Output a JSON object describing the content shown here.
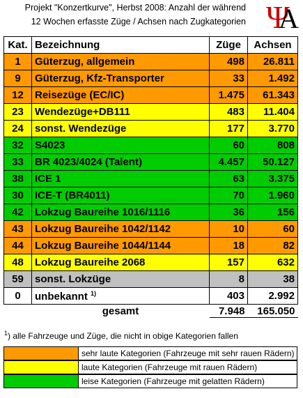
{
  "header": {
    "title_line1": "Projekt \"Konzertkurve\", Herbst 2008: Anzahl der während",
    "title_line2": "12 Wochen erfasste Züge / Achsen nach Zugkategorien",
    "logo_symbol": "Ψ",
    "logo_letter": "A"
  },
  "table": {
    "columns": [
      "Kat.",
      "Bezeichnung",
      "Züge",
      "Achsen"
    ],
    "rows": [
      {
        "cells": [
          "1",
          "Güterzug, allgemein",
          "498",
          "26.811"
        ],
        "color": "#ff9900"
      },
      {
        "cells": [
          "9",
          "Güterzug, Kfz-Transporter",
          "33",
          "1.492"
        ],
        "color": "#ff9900"
      },
      {
        "cells": [
          "12",
          "Reisezüge (EC/IC)",
          "1.475",
          "61.343"
        ],
        "color": "#ff9900"
      },
      {
        "cells": [
          "23",
          "Wendezüge+DB111",
          "483",
          "11.404"
        ],
        "color": "#ffff00"
      },
      {
        "cells": [
          "24",
          "sonst. Wendezüge",
          "177",
          "3.770"
        ],
        "color": "#ffff00"
      },
      {
        "cells": [
          "32",
          "S4023",
          "60",
          "808"
        ],
        "color": "#00cc00"
      },
      {
        "cells": [
          "33",
          "BR 4023/4024 (Talent)",
          "4.457",
          "50.127"
        ],
        "color": "#00cc00"
      },
      {
        "cells": [
          "38",
          "ICE 1",
          "63",
          "3.375"
        ],
        "color": "#00cc00"
      },
      {
        "cells": [
          "30",
          "ICE-T (BR4011)",
          "70",
          "1.960"
        ],
        "color": "#00cc00"
      },
      {
        "cells": [
          "42",
          "Lokzug Baureihe 1016/1116",
          "36",
          "156"
        ],
        "color": "#00cc00"
      },
      {
        "cells": [
          "43",
          "Lokzug Baureihe 1042/1142",
          "10",
          "60"
        ],
        "color": "#ff9900"
      },
      {
        "cells": [
          "44",
          "Lokzug Baureihe 1044/1144",
          "18",
          "82"
        ],
        "color": "#ff9900"
      },
      {
        "cells": [
          "48",
          "Lokzug Baureihe 2068",
          "157",
          "632"
        ],
        "color": "#ffff00"
      },
      {
        "cells": [
          "59",
          "sonst. Lokzüge",
          "8",
          "38"
        ],
        "color": "#c0c0c0"
      },
      {
        "cells": [
          "0",
          "unbekannt",
          "403",
          "2.992"
        ],
        "color": "#ffffff",
        "note": "1)"
      }
    ],
    "total": [
      "gesamt",
      "7.948",
      "165.050"
    ]
  },
  "footnote": {
    "mark": "1",
    "text": ") alle Fahrzeuge und Züge, die nicht in obige Kategorien fallen"
  },
  "legend": [
    {
      "color": "#ff9900",
      "text": "sehr laute Kategorien (Fahrzeuge mit sehr rauen Rädern)"
    },
    {
      "color": "#ffff00",
      "text": "laute Kategorien (Fahrzeuge mit rauen Rädern)"
    },
    {
      "color": "#00cc00",
      "text": "leise Kategorien (Fahrzeuge mit gelatten Rädern)"
    }
  ]
}
